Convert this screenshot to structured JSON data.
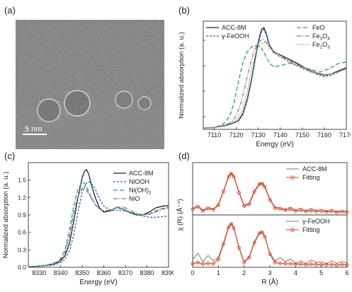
{
  "panels": {
    "a": "(a)",
    "b": "(b)",
    "c": "(c)",
    "d": "(d)"
  },
  "tem": {
    "scale_label": "5 nm"
  },
  "colors": {
    "black": "#222222",
    "blue": "#2a63c9",
    "teal": "#1aa38a",
    "grey": "#777777",
    "purple": "#9b6ea8",
    "olive": "#b5a51c",
    "red": "#e8401c"
  },
  "chart_data": [
    {
      "id": "b",
      "type": "line",
      "xlabel": "Energy (eV)",
      "ylabel": "Normalized absorption (a. u.)",
      "xlim": [
        7105,
        7170
      ],
      "ylim": [
        0,
        1.7
      ],
      "xticks": [
        7110,
        7120,
        7130,
        7140,
        7150,
        7160,
        7170
      ],
      "ytick_labels": false,
      "legend_left": [
        "ACC-8M",
        "γ-FeOOH"
      ],
      "legend_right": [
        "FeO",
        "Fe3O4",
        "Fe2O3"
      ],
      "series": [
        {
          "name": "ACC-8M",
          "color": "black",
          "dash": "",
          "x": [
            7105,
            7110,
            7115,
            7118,
            7121,
            7123,
            7125,
            7127,
            7129,
            7130.5,
            7131.5,
            7132.5,
            7133.5,
            7135,
            7137,
            7140,
            7143,
            7147,
            7152,
            7157,
            7160,
            7163,
            7167,
            7170
          ],
          "y": [
            0.02,
            0.03,
            0.06,
            0.09,
            0.14,
            0.25,
            0.48,
            0.8,
            1.2,
            1.45,
            1.57,
            1.6,
            1.52,
            1.33,
            1.22,
            1.17,
            1.12,
            1.05,
            0.95,
            0.88,
            0.85,
            0.87,
            0.93,
            0.97
          ]
        },
        {
          "name": "γ-FeOOH",
          "color": "blue",
          "dash": "3 2",
          "x": [
            7105,
            7110,
            7115,
            7118,
            7121,
            7123,
            7125,
            7127,
            7129,
            7130.5,
            7131.5,
            7132.5,
            7133.5,
            7135,
            7137,
            7140,
            7143,
            7147,
            7152,
            7157,
            7160,
            7163,
            7167,
            7170
          ],
          "y": [
            0.02,
            0.03,
            0.06,
            0.09,
            0.13,
            0.23,
            0.45,
            0.78,
            1.17,
            1.42,
            1.54,
            1.57,
            1.5,
            1.32,
            1.2,
            1.14,
            1.08,
            1.01,
            0.93,
            0.86,
            0.83,
            0.85,
            0.91,
            0.95
          ]
        },
        {
          "name": "FeO",
          "color": "teal",
          "dash": "6 3",
          "x": [
            7105,
            7110,
            7114,
            7117,
            7119,
            7121,
            7123,
            7125,
            7127,
            7129,
            7131,
            7133,
            7135,
            7137,
            7140,
            7144,
            7148,
            7153,
            7158,
            7162,
            7166,
            7170
          ],
          "y": [
            0.02,
            0.03,
            0.08,
            0.2,
            0.42,
            0.75,
            1.05,
            1.22,
            1.3,
            1.32,
            1.3,
            1.18,
            1.05,
            0.98,
            1.0,
            1.04,
            1.0,
            0.95,
            0.9,
            0.95,
            1.03,
            1.06
          ]
        },
        {
          "name": "Fe3O4",
          "color": "purple",
          "dash": "6 2 1.5 2",
          "x": [
            7105,
            7110,
            7115,
            7118,
            7120,
            7122,
            7124,
            7126,
            7128,
            7130,
            7132,
            7134,
            7136,
            7139,
            7143,
            7147,
            7152,
            7157,
            7162,
            7166,
            7170
          ],
          "y": [
            0.02,
            0.03,
            0.07,
            0.12,
            0.22,
            0.4,
            0.68,
            0.98,
            1.22,
            1.37,
            1.42,
            1.36,
            1.26,
            1.18,
            1.1,
            1.03,
            0.95,
            0.88,
            0.86,
            0.9,
            0.95
          ]
        },
        {
          "name": "Fe2O3",
          "color": "olive",
          "dash": "1.5 1.5",
          "x": [
            7105,
            7110,
            7115,
            7118,
            7121,
            7123,
            7125,
            7127,
            7129,
            7131,
            7133,
            7135,
            7138,
            7142,
            7146,
            7151,
            7156,
            7161,
            7166,
            7170
          ],
          "y": [
            0.02,
            0.03,
            0.07,
            0.11,
            0.18,
            0.33,
            0.6,
            0.95,
            1.22,
            1.35,
            1.37,
            1.28,
            1.18,
            1.1,
            1.03,
            0.94,
            0.87,
            0.85,
            0.9,
            0.95
          ]
        }
      ]
    },
    {
      "id": "c",
      "type": "line",
      "xlabel": "Energy (eV)",
      "ylabel": "Normalized absorption (a. u.)",
      "xlim": [
        8325,
        8390
      ],
      "ylim": [
        0,
        1.8
      ],
      "xticks": [
        8330,
        8340,
        8350,
        8360,
        8370,
        8380,
        8390
      ],
      "yticks": [
        0.0,
        0.3,
        0.6,
        0.9,
        1.2,
        1.5
      ],
      "ytick_labels_text": [
        "0.0",
        "0.3",
        "0.6",
        "0.9",
        "1.2",
        "1.5"
      ],
      "legend": [
        "ACC-8M",
        "NiOOH",
        "Ni(OH)2",
        "NiO"
      ],
      "series": [
        {
          "name": "ACC-8M",
          "color": "black",
          "dash": "",
          "x": [
            8325,
            8330,
            8335,
            8338,
            8340,
            8342,
            8344,
            8346,
            8348,
            8350,
            8351,
            8352,
            8353,
            8354,
            8356,
            8358,
            8360,
            8363,
            8366,
            8369,
            8372,
            8375,
            8378,
            8381,
            8384,
            8387,
            8390
          ],
          "y": [
            0.01,
            0.02,
            0.04,
            0.07,
            0.11,
            0.2,
            0.4,
            0.78,
            1.2,
            1.55,
            1.65,
            1.68,
            1.6,
            1.45,
            1.2,
            1.02,
            0.95,
            0.97,
            1.03,
            1.0,
            0.94,
            0.9,
            0.9,
            0.95,
            1.02,
            1.05,
            1.06
          ]
        },
        {
          "name": "NiOOH",
          "color": "blue",
          "dash": "3 2",
          "x": [
            8325,
            8330,
            8335,
            8338,
            8340,
            8342,
            8344,
            8346,
            8348,
            8350,
            8352,
            8353,
            8354,
            8356,
            8358,
            8360,
            8363,
            8366,
            8369,
            8372,
            8375,
            8378,
            8381,
            8384,
            8387,
            8390
          ],
          "y": [
            0.01,
            0.02,
            0.03,
            0.05,
            0.08,
            0.14,
            0.28,
            0.55,
            0.95,
            1.3,
            1.45,
            1.47,
            1.45,
            1.35,
            1.18,
            1.05,
            0.98,
            0.98,
            0.97,
            0.95,
            0.92,
            0.88,
            0.86,
            0.86,
            0.87,
            0.88
          ]
        },
        {
          "name": "Ni(OH)2",
          "color": "teal",
          "dash": "6 3",
          "x": [
            8325,
            8330,
            8335,
            8338,
            8340,
            8342,
            8344,
            8346,
            8348,
            8350,
            8351,
            8352,
            8354,
            8356,
            8358,
            8360,
            8363,
            8366,
            8369,
            8372,
            8375,
            8378,
            8381,
            8384,
            8387,
            8390
          ],
          "y": [
            0.01,
            0.02,
            0.05,
            0.09,
            0.15,
            0.3,
            0.62,
            1.05,
            1.35,
            1.46,
            1.44,
            1.38,
            1.22,
            1.08,
            1.0,
            0.97,
            0.98,
            1.02,
            1.0,
            0.95,
            0.91,
            0.9,
            0.92,
            0.97,
            1.01,
            1.03
          ]
        },
        {
          "name": "NiO",
          "color": "grey",
          "dash": "6 2 1.5 2",
          "x": [
            8325,
            8330,
            8335,
            8338,
            8340,
            8342,
            8344,
            8346,
            8348,
            8350,
            8351,
            8352,
            8354,
            8356,
            8358,
            8360,
            8363,
            8366,
            8369,
            8372,
            8375,
            8378,
            8381,
            8384,
            8387,
            8390
          ],
          "y": [
            0.01,
            0.02,
            0.04,
            0.08,
            0.13,
            0.25,
            0.52,
            0.92,
            1.22,
            1.36,
            1.37,
            1.33,
            1.2,
            1.08,
            1.0,
            0.97,
            0.98,
            1.03,
            1.04,
            0.98,
            0.93,
            0.9,
            0.91,
            0.95,
            1.0,
            1.02
          ]
        }
      ]
    },
    {
      "id": "d",
      "type": "line",
      "xlabel": "R (Å)",
      "ylabel": "χ (R) (Å⁻⁴)",
      "xlim": [
        0,
        6
      ],
      "xticks": [
        0,
        1,
        2,
        3,
        4,
        5,
        6
      ],
      "ytick_labels": false,
      "subplots": [
        {
          "legend": [
            "ACC-8M",
            "Fitting"
          ],
          "ylim": [
            0,
            1.15
          ],
          "series": [
            {
              "name": "ACC-8M",
              "color": "grey",
              "dash": "",
              "marker": false,
              "x": [
                0,
                0.2,
                0.4,
                0.6,
                0.8,
                1.0,
                1.2,
                1.4,
                1.5,
                1.6,
                1.8,
                2.0,
                2.2,
                2.4,
                2.6,
                2.7,
                2.8,
                3.0,
                3.2,
                3.4,
                3.6,
                3.8,
                4.0,
                4.2,
                4.4,
                4.6,
                4.8,
                5.0,
                5.2,
                5.4,
                5.6,
                5.8,
                6.0
              ],
              "y": [
                0.12,
                0.2,
                0.08,
                0.16,
                0.1,
                0.22,
                0.55,
                0.9,
                0.97,
                0.9,
                0.52,
                0.2,
                0.25,
                0.55,
                0.72,
                0.73,
                0.66,
                0.35,
                0.15,
                0.14,
                0.1,
                0.15,
                0.08,
                0.13,
                0.06,
                0.12,
                0.07,
                0.1,
                0.05,
                0.1,
                0.04,
                0.08,
                0.06
              ]
            },
            {
              "name": "Fitting",
              "color": "red",
              "dash": "",
              "marker": true,
              "x": [
                0,
                0.2,
                0.4,
                0.6,
                0.8,
                1.0,
                1.2,
                1.4,
                1.5,
                1.6,
                1.8,
                2.0,
                2.2,
                2.4,
                2.6,
                2.7,
                2.8,
                3.0,
                3.2,
                3.4,
                3.6,
                3.8,
                4.0,
                4.2,
                4.4,
                4.6,
                4.8,
                5.0,
                5.2,
                5.4,
                5.6,
                5.8,
                6.0
              ],
              "y": [
                0.1,
                0.16,
                0.06,
                0.12,
                0.09,
                0.2,
                0.53,
                0.88,
                0.95,
                0.88,
                0.5,
                0.18,
                0.22,
                0.52,
                0.7,
                0.71,
                0.64,
                0.33,
                0.13,
                0.11,
                0.08,
                0.1,
                0.06,
                0.08,
                0.05,
                0.07,
                0.05,
                0.06,
                0.04,
                0.05,
                0.03,
                0.04,
                0.03
              ]
            }
          ]
        },
        {
          "legend": [
            "γ-FeOOH",
            "Fitting"
          ],
          "ylim": [
            0,
            1.15
          ],
          "series": [
            {
              "name": "γ-FeOOH",
              "color": "grey",
              "dash": "",
              "marker": false,
              "x": [
                0,
                0.2,
                0.4,
                0.6,
                0.8,
                1.0,
                1.2,
                1.4,
                1.5,
                1.6,
                1.8,
                2.0,
                2.2,
                2.4,
                2.6,
                2.7,
                2.8,
                3.0,
                3.2,
                3.4,
                3.6,
                3.8,
                4.0,
                4.2,
                4.4,
                4.6,
                4.8,
                5.0,
                5.2,
                5.4,
                5.6,
                5.8,
                6.0
              ],
              "y": [
                0.15,
                0.3,
                0.1,
                0.25,
                0.12,
                0.2,
                0.55,
                0.95,
                1.02,
                0.92,
                0.45,
                0.1,
                0.22,
                0.58,
                0.8,
                0.82,
                0.72,
                0.3,
                0.12,
                0.2,
                0.1,
                0.16,
                0.06,
                0.12,
                0.05,
                0.14,
                0.08,
                0.1,
                0.05,
                0.12,
                0.06,
                0.1,
                0.07
              ]
            },
            {
              "name": "Fitting",
              "color": "red",
              "dash": "",
              "marker": true,
              "x": [
                0,
                0.2,
                0.4,
                0.6,
                0.8,
                1.0,
                1.2,
                1.4,
                1.5,
                1.6,
                1.8,
                2.0,
                2.2,
                2.4,
                2.6,
                2.7,
                2.8,
                3.0,
                3.2,
                3.4,
                3.6,
                3.8,
                4.0,
                4.2,
                4.4,
                4.6,
                4.8,
                5.0,
                5.2,
                5.4,
                5.6,
                5.8,
                6.0
              ],
              "y": [
                0.05,
                0.08,
                0.04,
                0.06,
                0.05,
                0.15,
                0.52,
                0.92,
                1.0,
                0.9,
                0.43,
                0.08,
                0.2,
                0.55,
                0.78,
                0.8,
                0.7,
                0.28,
                0.08,
                0.06,
                0.05,
                0.05,
                0.04,
                0.04,
                0.03,
                0.04,
                0.03,
                0.03,
                0.03,
                0.03,
                0.02,
                0.03,
                0.02
              ]
            }
          ]
        }
      ]
    }
  ]
}
